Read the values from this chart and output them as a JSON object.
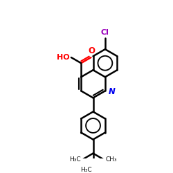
{
  "bg_color": "#ffffff",
  "bond_color": "#000000",
  "N_color": "#0000ee",
  "O_color": "#ff0000",
  "Cl_color": "#9900bb",
  "lw": 1.8,
  "dbo": 0.013,
  "b": 0.088,
  "xlim": [
    0.0,
    1.0
  ],
  "ylim": [
    0.0,
    1.0
  ],
  "N_label": "N",
  "O_label": "O",
  "HO_label": "HO",
  "Cl_label": "Cl",
  "methyl_labels": [
    "H₃C",
    "CH₃",
    "H₃C"
  ]
}
